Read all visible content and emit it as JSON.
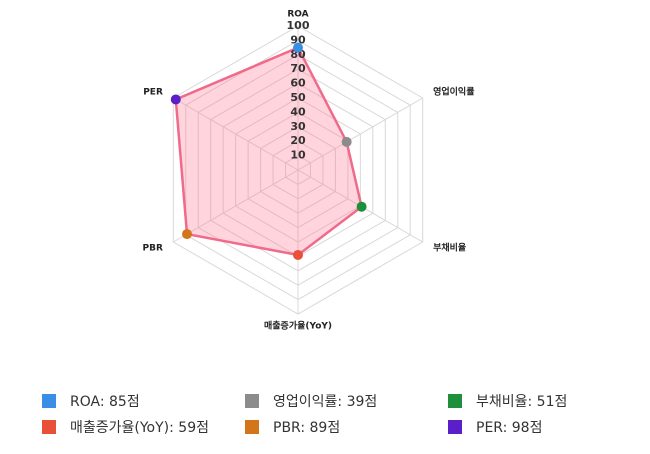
{
  "chart_data": {
    "type": "radar",
    "categories": [
      "ROA",
      "영업이익률",
      "부채비율",
      "매출증가율(YoY)",
      "PBR",
      "PER"
    ],
    "values": [
      85,
      39,
      51,
      59,
      89,
      98
    ],
    "value_labels": [
      "ROA: 85점",
      "영업이익률: 39점",
      "부채비율: 51점",
      "매출증가율(YoY): 59점",
      "PBR: 89점",
      "PER: 98점"
    ],
    "point_colors": [
      "#3a8ee6",
      "#8c8c8c",
      "#1e8f3a",
      "#e8503a",
      "#d2751b",
      "#5a1fc8"
    ],
    "color": "#f06a8a",
    "fill": "rgba(255,120,150,0.32)",
    "ylim": [
      0,
      100
    ],
    "yticks": [
      10,
      20,
      30,
      40,
      50,
      60,
      70,
      80,
      90,
      100
    ]
  }
}
